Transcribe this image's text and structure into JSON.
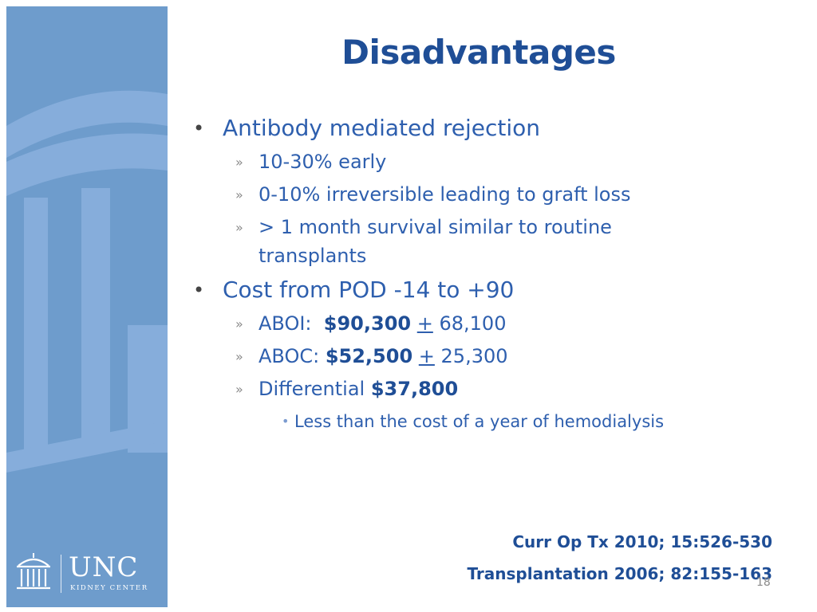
{
  "slide": {
    "title": "Disadvantages",
    "page_number": "18",
    "bullet_glyph": "•",
    "sub_glyph": "»",
    "bullets": [
      {
        "text": "Antibody mediated rejection",
        "sub": [
          {
            "text": "10-30% early"
          },
          {
            "text": "0-10% irreversible leading to graft loss"
          },
          {
            "text": "> 1 month survival similar to routine transplants"
          }
        ]
      },
      {
        "text": "Cost from POD -14 to +90",
        "sub": [
          {
            "prefix": "ABOI:  ",
            "bold": "$90,300",
            "plusminus": "+",
            "rest": "68,100"
          },
          {
            "prefix": "ABOC: ",
            "bold": "$52,500",
            "plusminus": "+",
            "rest": "25,300"
          },
          {
            "prefix": "Differential ",
            "bold": "$37,800",
            "sub": [
              {
                "text": "Less than the cost of a year of hemodialysis"
              }
            ]
          }
        ]
      }
    ],
    "references": [
      "Curr Op Tx 2010; 15:526-530",
      "Transplantation 2006; 82:155-163"
    ]
  },
  "logo": {
    "name": "UNC",
    "subtitle": "KIDNEY CENTER",
    "icon": "old-well-icon"
  },
  "colors": {
    "sidebar": "#6e9ccc",
    "title": "#1f4e96",
    "body_text": "#2e5fae"
  }
}
